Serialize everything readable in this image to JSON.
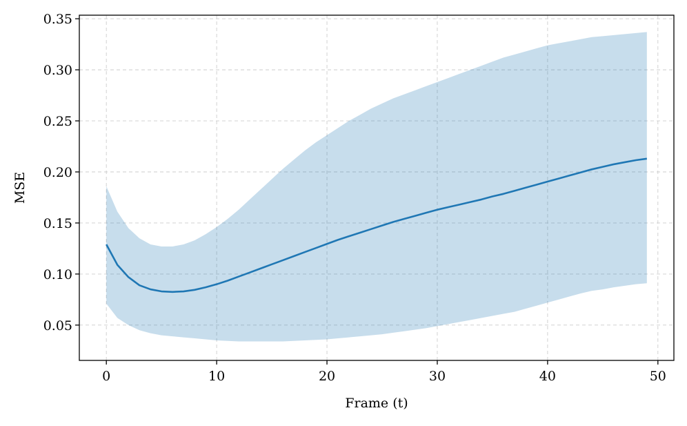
{
  "chart_data": {
    "type": "line",
    "title": "",
    "xlabel": "Frame (t)",
    "ylabel": "MSE",
    "xlim": [
      -2.45,
      51.45
    ],
    "ylim": [
      0.0154,
      0.3535
    ],
    "xticks": [
      0,
      10,
      20,
      30,
      40,
      50
    ],
    "xtick_labels": [
      "0",
      "10",
      "20",
      "30",
      "40",
      "50"
    ],
    "yticks": [
      0.05,
      0.1,
      0.15,
      0.2,
      0.25,
      0.3,
      0.35
    ],
    "ytick_labels": [
      "0.05",
      "0.10",
      "0.15",
      "0.20",
      "0.25",
      "0.30",
      "0.35"
    ],
    "grid": true,
    "legend": "none",
    "colors": {
      "line": "#1f77b4",
      "band": "#1f77b4",
      "band_opacity": 0.25
    },
    "series": [
      {
        "kind": "mean",
        "x": [
          0,
          1,
          2,
          3,
          4,
          5,
          6,
          7,
          8,
          9,
          10,
          11,
          12,
          13,
          14,
          15,
          16,
          17,
          18,
          19,
          20,
          21,
          22,
          23,
          24,
          25,
          26,
          27,
          28,
          29,
          30,
          31,
          32,
          33,
          34,
          35,
          36,
          37,
          38,
          39,
          40,
          41,
          42,
          43,
          44,
          45,
          46,
          47,
          48,
          49
        ],
        "values": [
          0.129,
          0.109,
          0.097,
          0.089,
          0.085,
          0.083,
          0.0825,
          0.083,
          0.0845,
          0.087,
          0.09,
          0.0935,
          0.0975,
          0.1015,
          0.1055,
          0.1095,
          0.1135,
          0.1175,
          0.1215,
          0.1255,
          0.1295,
          0.1335,
          0.137,
          0.1405,
          0.144,
          0.1475,
          0.151,
          0.154,
          0.157,
          0.16,
          0.163,
          0.1655,
          0.168,
          0.1705,
          0.173,
          0.176,
          0.1785,
          0.1815,
          0.1845,
          0.1875,
          0.1905,
          0.1935,
          0.1965,
          0.1995,
          0.2025,
          0.205,
          0.2075,
          0.2095,
          0.2115,
          0.213
        ]
      },
      {
        "kind": "band",
        "x": [
          0,
          1,
          2,
          3,
          4,
          5,
          6,
          7,
          8,
          9,
          10,
          11,
          12,
          13,
          14,
          15,
          16,
          17,
          18,
          19,
          20,
          21,
          22,
          23,
          24,
          25,
          26,
          27,
          28,
          29,
          30,
          31,
          32,
          33,
          34,
          35,
          36,
          37,
          38,
          39,
          40,
          41,
          42,
          43,
          44,
          45,
          46,
          47,
          48,
          49
        ],
        "lower": [
          0.071,
          0.057,
          0.05,
          0.045,
          0.042,
          0.04,
          0.039,
          0.038,
          0.037,
          0.036,
          0.035,
          0.0345,
          0.034,
          0.034,
          0.034,
          0.034,
          0.034,
          0.0345,
          0.035,
          0.0355,
          0.036,
          0.037,
          0.038,
          0.039,
          0.04,
          0.041,
          0.0425,
          0.044,
          0.0455,
          0.047,
          0.049,
          0.051,
          0.053,
          0.055,
          0.057,
          0.059,
          0.061,
          0.063,
          0.066,
          0.069,
          0.072,
          0.075,
          0.078,
          0.081,
          0.0835,
          0.085,
          0.087,
          0.0885,
          0.09,
          0.091
        ],
        "upper": [
          0.186,
          0.161,
          0.145,
          0.135,
          0.129,
          0.127,
          0.127,
          0.129,
          0.133,
          0.139,
          0.146,
          0.154,
          0.163,
          0.173,
          0.183,
          0.193,
          0.203,
          0.212,
          0.221,
          0.229,
          0.236,
          0.243,
          0.25,
          0.256,
          0.262,
          0.267,
          0.272,
          0.276,
          0.28,
          0.284,
          0.288,
          0.292,
          0.296,
          0.3,
          0.304,
          0.308,
          0.312,
          0.315,
          0.318,
          0.321,
          0.324,
          0.326,
          0.328,
          0.33,
          0.332,
          0.333,
          0.334,
          0.335,
          0.336,
          0.337
        ]
      }
    ]
  }
}
